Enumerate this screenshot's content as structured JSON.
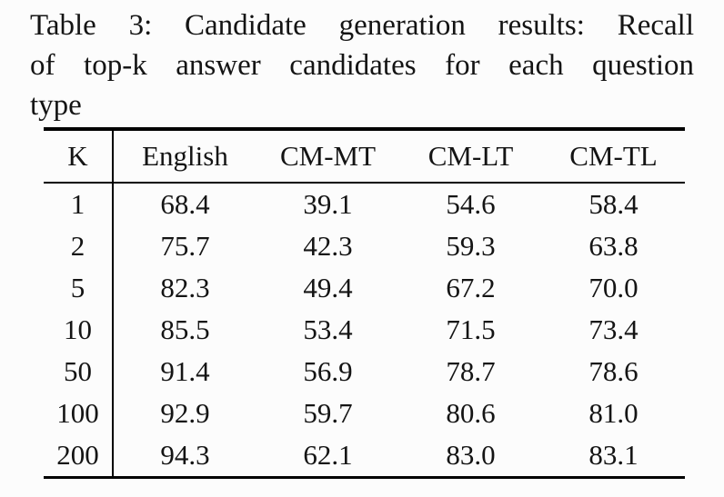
{
  "caption": {
    "label": "Table 3:",
    "lines": [
      "Table 3: Candidate generation results: Recall",
      "of top-k answer candidates for each question",
      "type"
    ],
    "full_text": "Table 3: Candidate generation results: Recall of top-k answer candidates for each question type"
  },
  "table": {
    "columns": [
      "K",
      "English",
      "CM-MT",
      "CM-LT",
      "CM-TL"
    ],
    "rows": [
      {
        "k": "1",
        "values": [
          "68.4",
          "39.1",
          "54.6",
          "58.4"
        ]
      },
      {
        "k": "2",
        "values": [
          "75.7",
          "42.3",
          "59.3",
          "63.8"
        ]
      },
      {
        "k": "5",
        "values": [
          "82.3",
          "49.4",
          "67.2",
          "70.0"
        ]
      },
      {
        "k": "10",
        "values": [
          "85.5",
          "53.4",
          "71.5",
          "73.4"
        ]
      },
      {
        "k": "50",
        "values": [
          "91.4",
          "56.9",
          "78.7",
          "78.6"
        ]
      },
      {
        "k": "100",
        "values": [
          "92.9",
          "59.7",
          "80.6",
          "81.0"
        ]
      },
      {
        "k": "200",
        "values": [
          "94.3",
          "62.1",
          "83.0",
          "83.1"
        ]
      }
    ]
  },
  "colors": {
    "background": "#fcfcfc",
    "text": "#141414",
    "rule": "#000000"
  }
}
